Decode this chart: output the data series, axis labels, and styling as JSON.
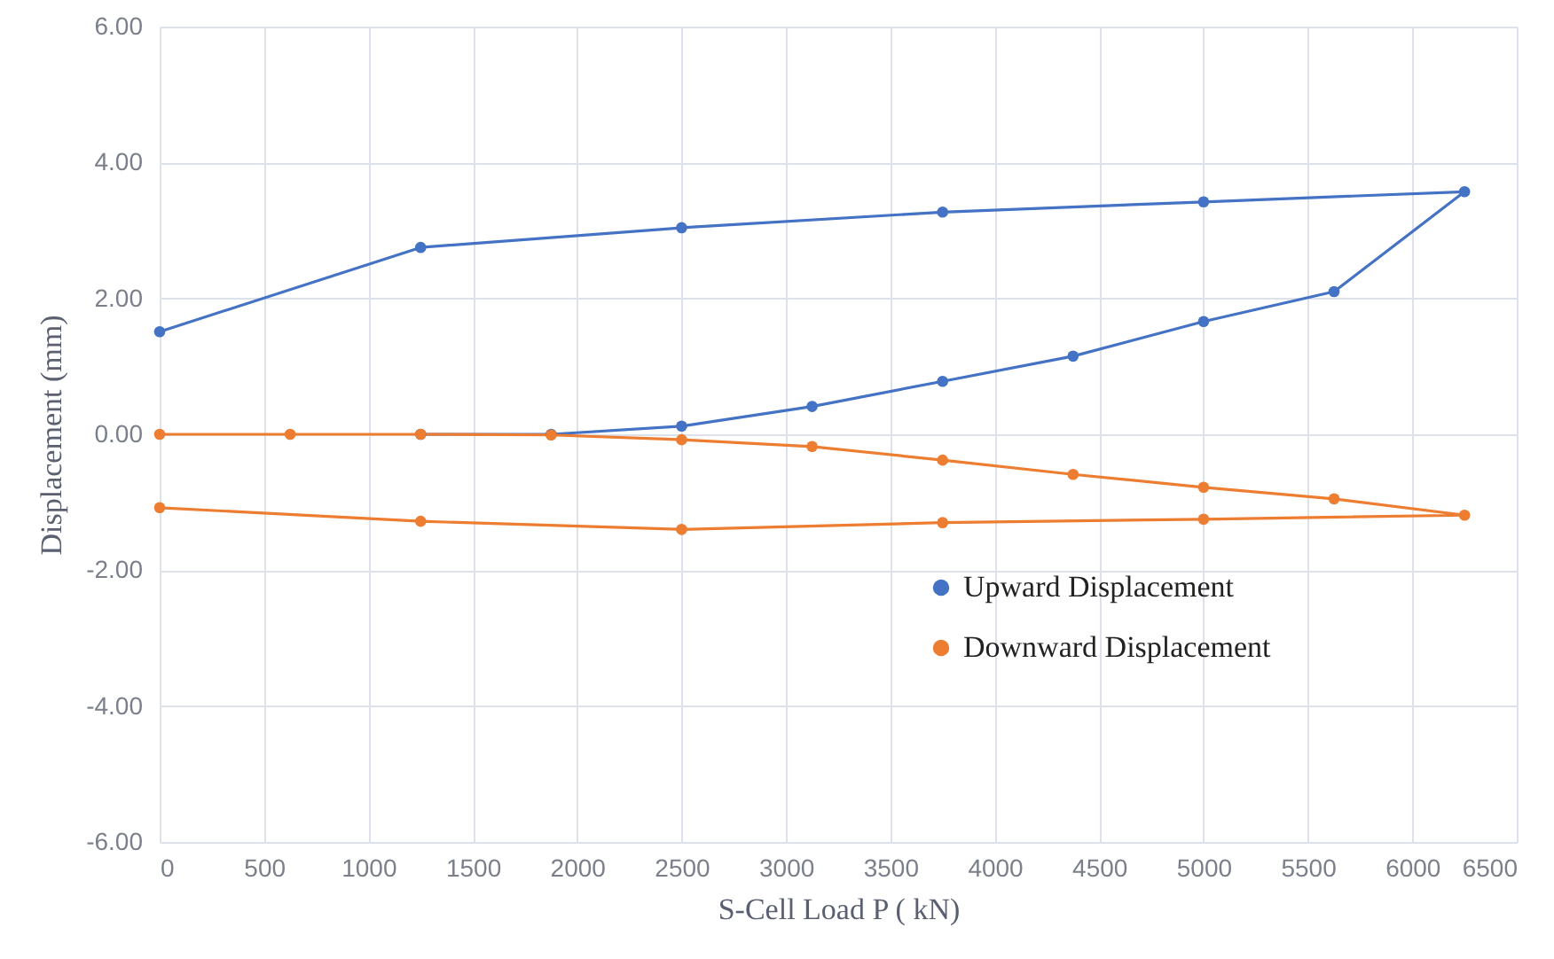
{
  "chart_data": {
    "type": "line",
    "xlabel": "S-Cell Load P ( kN)",
    "ylabel": "Displacement (mm)",
    "series": [
      {
        "name": "Upward Displacement",
        "color": "#4472c4",
        "x": [
          1250,
          1875,
          2500,
          3125,
          3750,
          4375,
          5000,
          5625,
          6250,
          5000,
          3750,
          2500,
          1250,
          0
        ],
        "values": [
          0,
          0,
          0.12,
          0.41,
          0.78,
          1.15,
          1.66,
          2.1,
          3.57,
          3.42,
          3.27,
          3.04,
          2.75,
          1.51
        ]
      },
      {
        "name": "Downward Displacement",
        "color": "#ed7d31",
        "x": [
          0,
          625,
          1250,
          1875,
          2500,
          3125,
          3750,
          4375,
          5000,
          5625,
          6250,
          5000,
          3750,
          2500,
          1250,
          0
        ],
        "values": [
          0,
          0,
          0,
          -0.01,
          -0.08,
          -0.18,
          -0.38,
          -0.59,
          -0.78,
          -0.95,
          -1.19,
          -1.25,
          -1.3,
          -1.4,
          -1.28,
          -1.08
        ]
      }
    ],
    "xlim": [
      0,
      6500
    ],
    "xticks": [
      0,
      500,
      1000,
      1500,
      2000,
      2500,
      3000,
      3500,
      4000,
      4500,
      5000,
      5500,
      6000,
      6500
    ],
    "ylim": [
      -6,
      6
    ],
    "yticks": [
      {
        "value": -6,
        "label": "-6.00"
      },
      {
        "value": -4,
        "label": "-4.00"
      },
      {
        "value": -2,
        "label": "-2.00"
      },
      {
        "value": 0,
        "label": "0.00"
      },
      {
        "value": 2,
        "label": "2.00"
      },
      {
        "value": 4,
        "label": "4.00"
      },
      {
        "value": 6,
        "label": "6.00"
      }
    ],
    "grid": true,
    "legend": "bottom right",
    "marker": "circle",
    "line_style": "solid"
  }
}
